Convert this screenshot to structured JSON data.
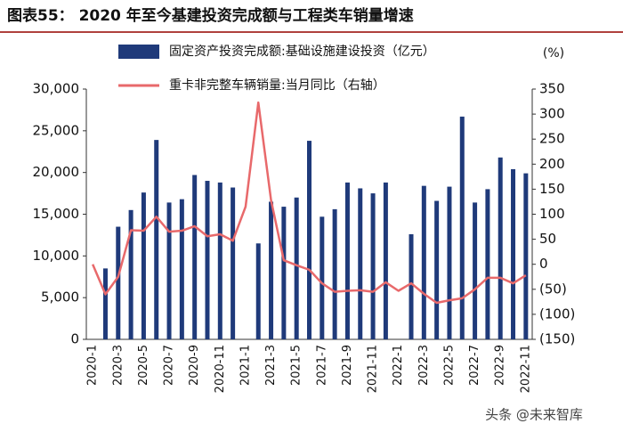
{
  "chart_data": {
    "type": "bar-line",
    "title": "图表55：  2020 年至今基建投资完成额与工程类车销量增速",
    "y2_unit": "(%)",
    "watermark": "头条 @未来智库",
    "categories": [
      "2020-1",
      null,
      "2020-3",
      null,
      "2020-5",
      null,
      "2020-7",
      null,
      "2020-9",
      null,
      "2020-11",
      null,
      "2021-1",
      null,
      "2021-3",
      null,
      "2021-5",
      null,
      "2021-7",
      null,
      "2021-9",
      null,
      "2021-11",
      null,
      "2022-1",
      null,
      "2022-3",
      null,
      "2022-5",
      null,
      "2022-7",
      null,
      "2022-9",
      null,
      "2022-11"
    ],
    "series": [
      {
        "name": "固定资产投资完成额:基础设施建设投资（亿元）",
        "type": "bar",
        "color": "#1f3a7a",
        "values": [
          null,
          8500,
          13500,
          15500,
          17600,
          23900,
          16400,
          16800,
          19700,
          19000,
          18800,
          18200,
          null,
          11500,
          16500,
          15900,
          17000,
          23800,
          14700,
          15600,
          18800,
          18100,
          17500,
          18800,
          null,
          12600,
          18400,
          16600,
          18300,
          26700,
          16400,
          18000,
          21800,
          20400,
          19900
        ]
      },
      {
        "name": "重卡非完整车辆销量:当月同比（右轴）",
        "type": "line",
        "axis": "y2",
        "color": "#e8696b",
        "values": [
          0,
          -60,
          -25,
          68,
          67,
          95,
          65,
          67,
          76,
          56,
          60,
          47,
          115,
          323,
          128,
          8,
          -2,
          -11,
          -38,
          -55,
          -53,
          -52,
          -55,
          -36,
          -53,
          -38,
          -59,
          -77,
          -72,
          -68,
          -50,
          -27,
          -27,
          -38,
          -22
        ]
      }
    ],
    "ylim": [
      0,
      30000
    ],
    "yticks": [
      0,
      {
        "value": 5000,
        "label": "5,000"
      },
      {
        "value": 10000,
        "label": "10,000"
      },
      {
        "value": 15000,
        "label": "15,000"
      },
      {
        "value": 20000,
        "label": "20,000"
      },
      {
        "value": 25000,
        "label": "25,000"
      },
      {
        "value": 30000,
        "label": "30,000"
      }
    ],
    "y2lim": [
      -150,
      350
    ],
    "y2ticks": [
      {
        "value": -150,
        "label": "(150)"
      },
      {
        "value": -100,
        "label": "(100)"
      },
      {
        "value": -50,
        "label": "(50)"
      },
      0,
      50,
      100,
      150,
      200,
      250,
      300,
      350
    ],
    "grid": false
  }
}
